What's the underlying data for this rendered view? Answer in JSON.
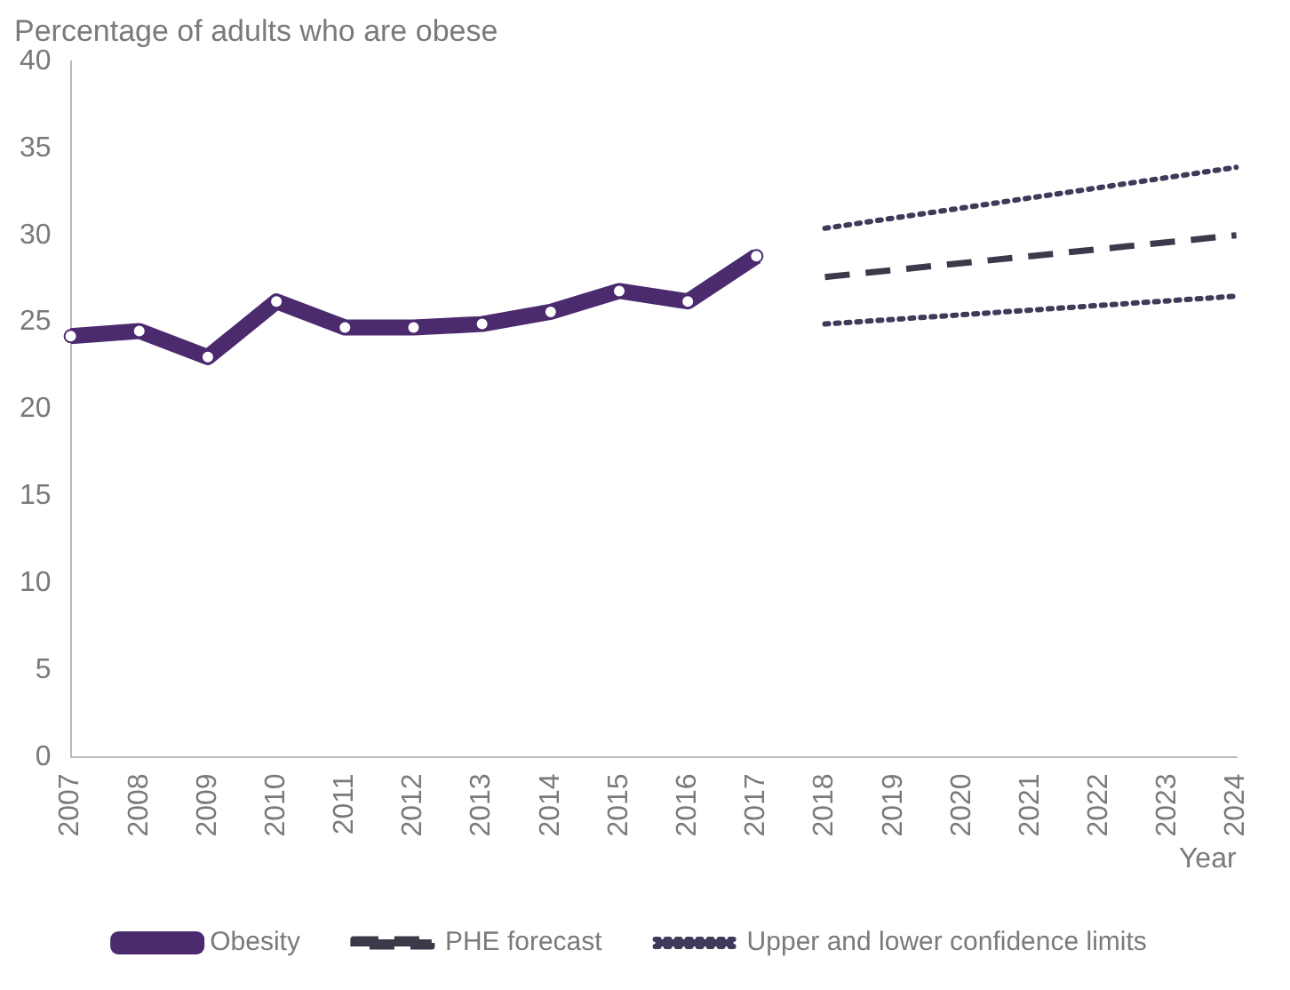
{
  "chart_data": {
    "type": "line",
    "title": "Percentage of adults who are obese",
    "xlabel": "Year",
    "categories": [
      "2007",
      "2008",
      "2009",
      "2010",
      "2011",
      "2012",
      "2013",
      "2014",
      "2015",
      "2016",
      "2017",
      "2018",
      "2019",
      "2020",
      "2021",
      "2022",
      "2023",
      "2024"
    ],
    "series": [
      {
        "name": "Obesity",
        "color": "#4b2a6e",
        "line_style": "solid",
        "marker": "circle",
        "values": [
          24.2,
          24.5,
          23.0,
          26.2,
          24.7,
          24.7,
          24.9,
          25.6,
          26.8,
          26.2,
          28.8,
          null,
          null,
          null,
          null,
          null,
          null,
          null
        ]
      },
      {
        "name": "PHE forecast",
        "color": "#3a3a4a",
        "line_style": "dashed",
        "marker": "none",
        "values": [
          null,
          null,
          null,
          null,
          null,
          null,
          null,
          null,
          null,
          null,
          null,
          27.6,
          null,
          null,
          null,
          null,
          null,
          30.0
        ]
      },
      {
        "name": "Upper and lower confidence limits",
        "color": "#3e3a5a",
        "line_style": "dotted",
        "marker": "none",
        "values": [
          null,
          null,
          null,
          null,
          null,
          null,
          null,
          null,
          null,
          null,
          null,
          30.4,
          null,
          null,
          null,
          null,
          null,
          33.9
        ]
      },
      {
        "color": "#3e3a5a",
        "line_style": "dotted",
        "marker": "none",
        "values": [
          null,
          null,
          null,
          null,
          null,
          null,
          null,
          null,
          null,
          null,
          null,
          24.9,
          null,
          null,
          null,
          null,
          null,
          26.5
        ]
      }
    ],
    "ylim": [
      0,
      40
    ],
    "yticks": [
      0,
      5,
      10,
      15,
      20,
      25,
      30,
      35,
      40
    ],
    "legend": "bottom"
  }
}
